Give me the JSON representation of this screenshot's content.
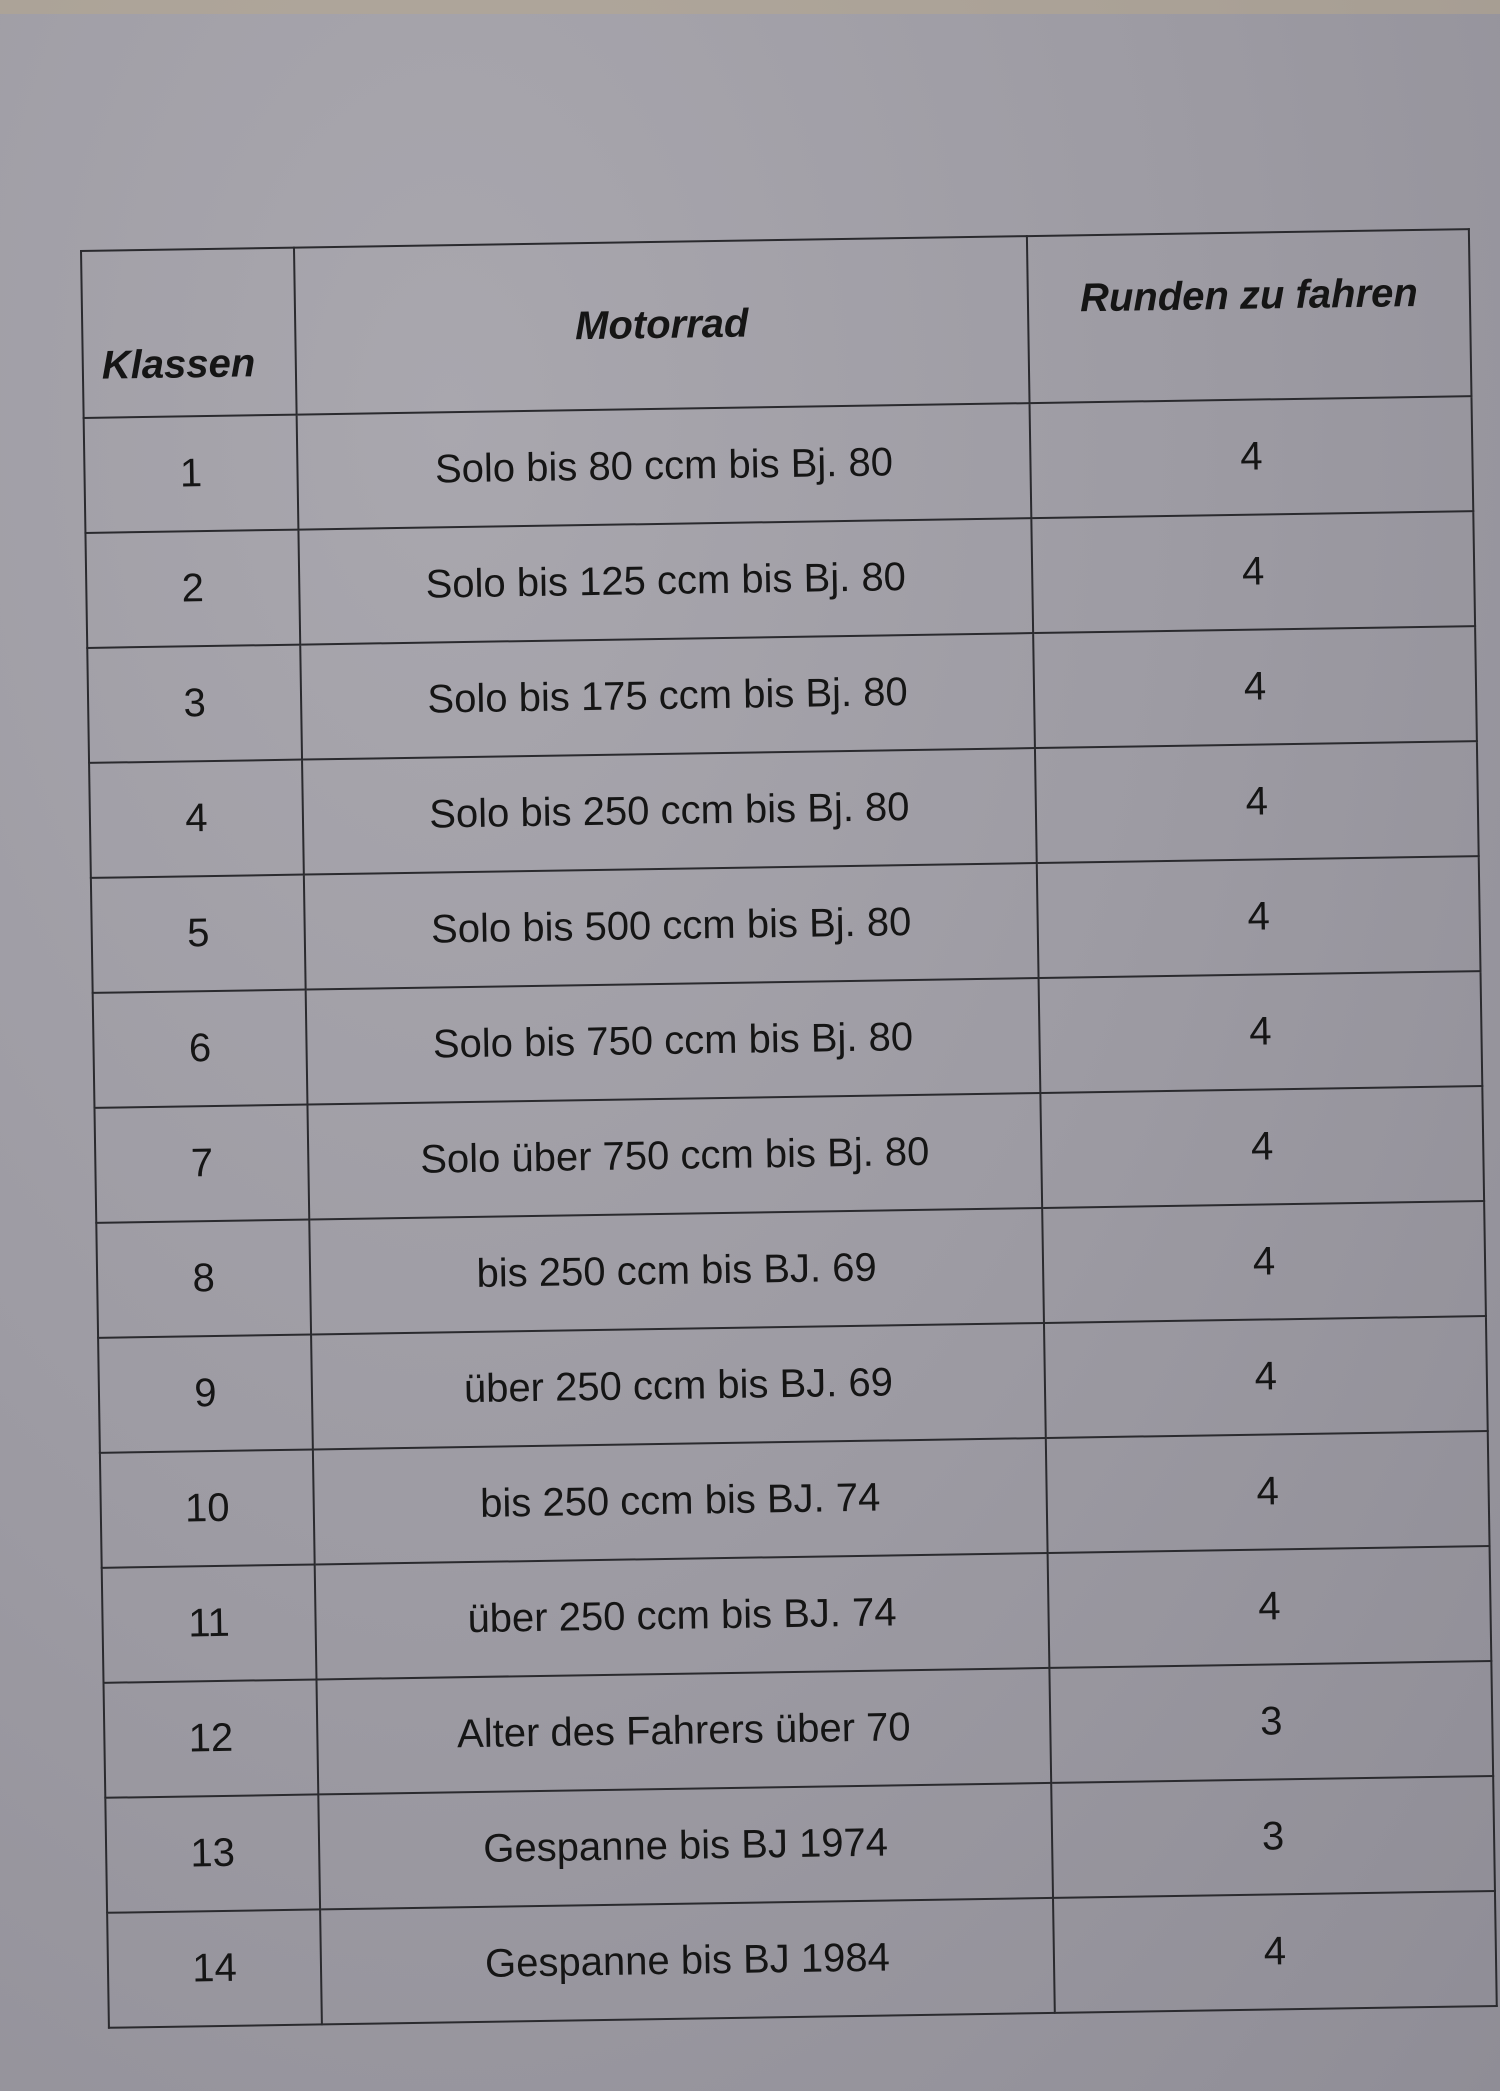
{
  "table": {
    "headers": [
      "Klassen",
      "Motorrad",
      "Runden zu fahren"
    ],
    "rows": [
      [
        "1",
        "Solo bis 80 ccm bis Bj. 80",
        "4"
      ],
      [
        "2",
        "Solo bis 125 ccm bis Bj. 80",
        "4"
      ],
      [
        "3",
        "Solo bis 175 ccm bis Bj. 80",
        "4"
      ],
      [
        "4",
        "Solo bis 250 ccm bis Bj. 80",
        "4"
      ],
      [
        "5",
        "Solo bis 500 ccm bis Bj. 80",
        "4"
      ],
      [
        "6",
        "Solo bis 750 ccm bis Bj. 80",
        "4"
      ],
      [
        "7",
        "Solo über 750 ccm bis Bj. 80",
        "4"
      ],
      [
        "8",
        "bis 250 ccm bis BJ. 69",
        "4"
      ],
      [
        "9",
        "über 250 ccm bis BJ. 69",
        "4"
      ],
      [
        "10",
        "bis 250 ccm bis BJ. 74",
        "4"
      ],
      [
        "11",
        "über 250 ccm bis BJ. 74",
        "4"
      ],
      [
        "12",
        "Alter des Fahrers über 70",
        "3"
      ],
      [
        "13",
        "Gespanne bis BJ 1974",
        "3"
      ],
      [
        "14",
        "Gespanne bis BJ 1984",
        "4"
      ]
    ]
  }
}
